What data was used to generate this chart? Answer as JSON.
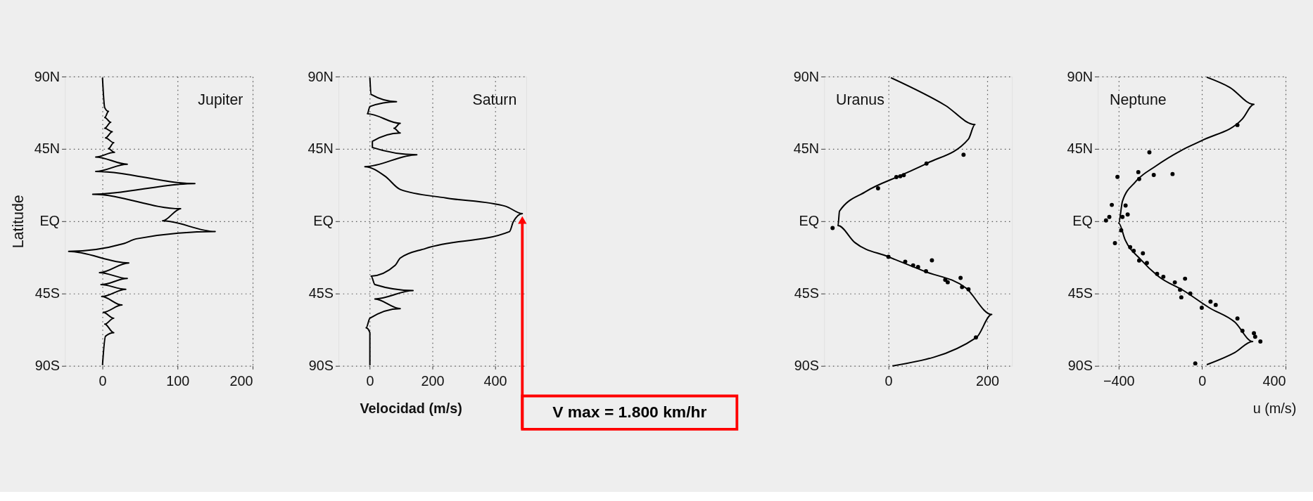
{
  "chart_data": [
    {
      "type": "line",
      "title": "Jupiter",
      "ylabel": "Latitude",
      "xlim": [
        -50,
        200
      ],
      "xticks": [
        0,
        100,
        200
      ],
      "ylim": [
        -90,
        90
      ],
      "yticks": [
        {
          "value": -90,
          "label": "90S"
        },
        {
          "value": -45,
          "label": "45S"
        },
        {
          "value": 0,
          "label": "EQ"
        },
        {
          "value": 45,
          "label": "45N"
        },
        {
          "value": 90,
          "label": "90N"
        }
      ],
      "grid": true,
      "line_style": "solid",
      "series": [
        {
          "color": "#000000",
          "x": [
            0,
            3,
            8,
            3,
            11,
            3,
            13,
            4,
            15,
            8,
            16,
            -9,
            33,
            -9,
            123,
            -13,
            104,
            80,
            150,
            45,
            28,
            -45,
            35,
            -4,
            33,
            -2,
            31,
            -1,
            26,
            1,
            15,
            3,
            15,
            4,
            0
          ],
          "values": [
            89.3,
            70.6,
            68.4,
            64.6,
            61.6,
            57.9,
            55.7,
            51.9,
            48.9,
            45.2,
            42.9,
            40,
            35.5,
            31,
            23.5,
            16.8,
            7.8,
            0.3,
            -6.4,
            -10.9,
            -13.9,
            -18.7,
            -25.9,
            -31.9,
            -35.6,
            -39.4,
            -42.3,
            -46.8,
            -52.1,
            -56.6,
            -60.3,
            -64,
            -69.3,
            -71.5,
            -89.5
          ]
        }
      ]
    },
    {
      "type": "line",
      "title": "Saturn",
      "xlabel": "Velocidad (m/s)",
      "xlim": [
        -100,
        500
      ],
      "xticks": [
        0,
        200,
        400
      ],
      "ylim": [
        -90,
        90
      ],
      "yticks": [
        {
          "value": -90,
          "label": "90S"
        },
        {
          "value": -45,
          "label": "45S"
        },
        {
          "value": 0,
          "label": "EQ"
        },
        {
          "value": 45,
          "label": "45N"
        },
        {
          "value": 90,
          "label": "90N"
        }
      ],
      "grid": true,
      "line_style": "solid",
      "annotations": [
        "V max = 1.800 km/hr"
      ],
      "series": [
        {
          "color": "#000000",
          "x": [
            0,
            4,
            85,
            0,
            -8,
            97,
            77,
            97,
            8,
            8,
            150,
            -16,
            49,
            97,
            243,
            434,
            487,
            458,
            446,
            178,
            97,
            81,
            4,
            16,
            138,
            16,
            97,
            0,
            -12,
            0,
            0
          ],
          "values": [
            89.3,
            78.9,
            74.4,
            71.4,
            66.9,
            60.9,
            57.9,
            54.9,
            49.7,
            45.9,
            41.4,
            34,
            28,
            19.8,
            14.5,
            9.3,
            4.8,
            -0.4,
            -6.4,
            -16.9,
            -22.9,
            -27.4,
            -34.1,
            -39.4,
            -43.1,
            -48.3,
            -54.3,
            -60.3,
            -66.3,
            -69.3,
            -89.5
          ]
        }
      ]
    },
    {
      "type": "line",
      "title": "Uranus",
      "xlim": [
        -130,
        250
      ],
      "xticks": [
        0,
        200
      ],
      "ylim": [
        -90,
        90
      ],
      "yticks": [
        {
          "value": -90,
          "label": "90S"
        },
        {
          "value": -45,
          "label": "45S"
        },
        {
          "value": 0,
          "label": "EQ"
        },
        {
          "value": 45,
          "label": "45N"
        },
        {
          "value": 90,
          "label": "90N"
        }
      ],
      "grid": true,
      "line_style": "solid",
      "series": [
        {
          "color": "#000000",
          "x": [
            5,
            115,
            175,
            162,
            79,
            26,
            -47,
            -99,
            -102,
            -68,
            0,
            73,
            157,
            209,
            178,
            8
          ],
          "values": [
            89.3,
            72.1,
            60.2,
            51.2,
            36.2,
            28.7,
            18.3,
            6.3,
            -2.7,
            -13.2,
            -22.1,
            -31.1,
            -41.6,
            -58,
            -72.3,
            -90
          ]
        },
        {
          "type": "scatter",
          "color": "#000000",
          "x": [
            152,
            77,
            16,
            31,
            24,
            -21,
            -113,
            0,
            34,
            50,
            60,
            88,
            76,
            115,
            120,
            146,
            149,
            162,
            177
          ],
          "values": [
            41.4,
            35.9,
            27.5,
            28.7,
            28,
            20.5,
            -4.2,
            -22.1,
            -25.1,
            -27.4,
            -28.4,
            -24.3,
            -31.1,
            -36.4,
            -37.9,
            -35.2,
            -40.9,
            -42.3,
            -72.3
          ]
        }
      ]
    },
    {
      "type": "line",
      "title": "Neptune",
      "xlabel": "u (m/s)",
      "xlim": [
        -500,
        400
      ],
      "xticks": [
        -400,
        0,
        400
      ],
      "ylim": [
        -90,
        90
      ],
      "yticks": [
        {
          "value": -90,
          "label": "90S"
        },
        {
          "value": -45,
          "label": "45S"
        },
        {
          "value": 0,
          "label": "EQ"
        },
        {
          "value": 45,
          "label": "45N"
        },
        {
          "value": 90,
          "label": "90N"
        }
      ],
      "grid": true,
      "line_style": "solid",
      "series": [
        {
          "color": "#000000",
          "x": [
            22,
            132,
            248,
            193,
            10,
            -100,
            -223,
            -320,
            -382,
            -400,
            -369,
            -296,
            -210,
            -88,
            34,
            157,
            242,
            157,
            22
          ],
          "values": [
            89.6,
            83.3,
            72.7,
            63.7,
            50.9,
            44.1,
            34.3,
            24.5,
            12.5,
            -1.1,
            -11.6,
            -23.6,
            -34.2,
            -43.2,
            -53.8,
            -62.8,
            -74.8,
            -81.6,
            -89.2
          ]
        },
        {
          "type": "scatter",
          "color": "#000000",
          "x": [
            169,
            -253,
            -406,
            -306,
            -302,
            -232,
            -142,
            -433,
            -367,
            -357,
            -382,
            -445,
            -461,
            -388,
            -418,
            -345,
            -328,
            -284,
            -302,
            -265,
            -216,
            -186,
            -131,
            -82,
            -106,
            -100,
            -57,
            -2,
            40,
            65,
            169,
            193,
            248,
            254,
            279,
            -33
          ],
          "values": [
            59.9,
            42.9,
            27.6,
            30.6,
            26.3,
            28.8,
            29.4,
            10.2,
            9.8,
            4.2,
            2.7,
            2.7,
            0.5,
            -5.6,
            -13.6,
            -16.1,
            -18.4,
            -19.9,
            -24.4,
            -25.9,
            -32.7,
            -34.5,
            -38,
            -35.7,
            -42.6,
            -47.3,
            -44.9,
            -53.8,
            -50,
            -52,
            -60.5,
            -68.1,
            -69.6,
            -71.8,
            -74.8,
            -88.4
          ]
        }
      ]
    }
  ]
}
